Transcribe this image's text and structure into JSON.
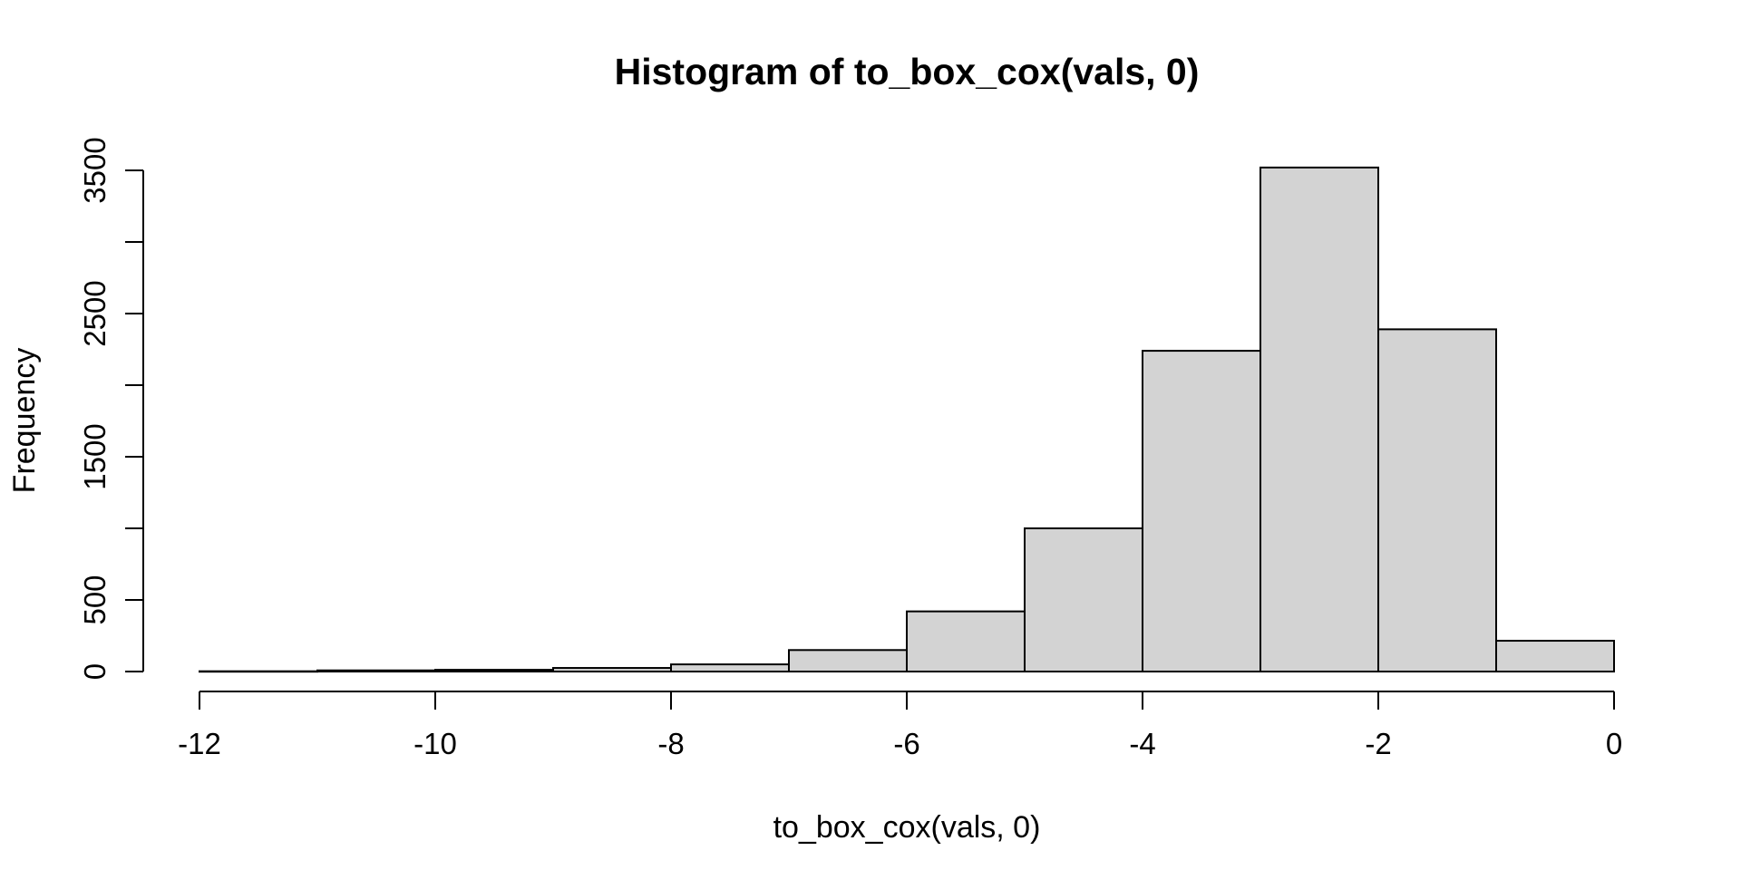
{
  "figure": {
    "background": "#ffffff",
    "text_color": "#000000"
  },
  "chart_data": {
    "type": "bar",
    "subtype": "histogram",
    "title": "Histogram of to_box_cox(vals, 0)",
    "xlabel": "to_box_cox(vals, 0)",
    "ylabel": "Frequency",
    "bin_edges": [
      -12,
      -11,
      -10,
      -9,
      -8,
      -7,
      -6,
      -5,
      -4,
      -3,
      -2,
      -1,
      0
    ],
    "categories": [
      "-12 to -11",
      "-11 to -10",
      "-10 to -9",
      "-9 to -8",
      "-8 to -7",
      "-7 to -6",
      "-6 to -5",
      "-5 to -4",
      "-4 to -3",
      "-3 to -2",
      "-2 to -1",
      "-1 to 0"
    ],
    "values": [
      2,
      8,
      12,
      25,
      50,
      150,
      420,
      1000,
      2240,
      3520,
      2390,
      215
    ],
    "xlim": [
      -12,
      0
    ],
    "ylim": [
      0,
      3520
    ],
    "x_ticks": [
      -12,
      -10,
      -8,
      -6,
      -4,
      -2,
      0
    ],
    "x_tick_labels": [
      "-12",
      "-10",
      "-8",
      "-6",
      "-4",
      "-2",
      "0"
    ],
    "y_ticks": [
      0,
      500,
      1000,
      1500,
      2000,
      2500,
      3000,
      3500
    ],
    "y_tick_labels": [
      "0",
      "500",
      "",
      "1500",
      "",
      "2500",
      "",
      "3500"
    ],
    "grid": false,
    "legend": null,
    "bar_fill": "#d3d3d3",
    "bar_stroke": "#000000",
    "axis_color": "#000000"
  }
}
